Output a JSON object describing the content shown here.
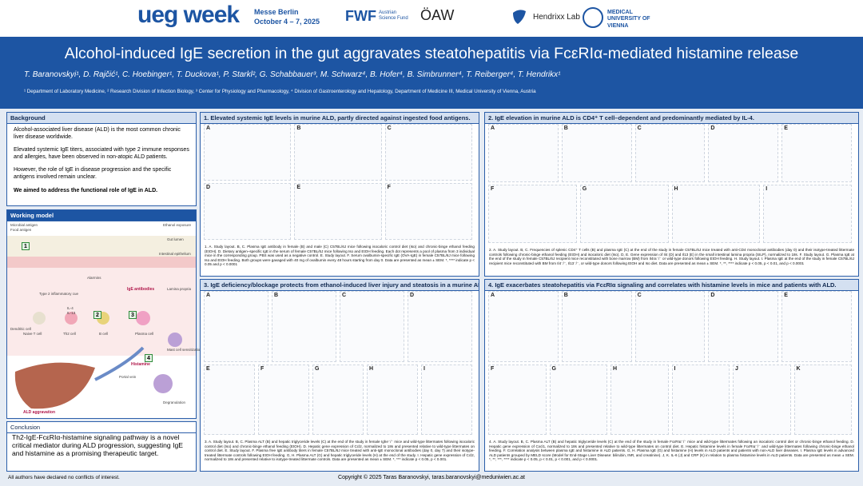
{
  "header": {
    "event": "ueg week",
    "venue": "Messe Berlin",
    "dates": "October 4 – 7, 2025",
    "logos": [
      "FWF",
      "Austrian Science Fund",
      "ÖAW",
      "Hendrixx Lab",
      "MEDICAL UNIVERSITY OF VIENNA"
    ]
  },
  "title": "Alcohol-induced IgE secretion in the gut aggravates steatohepatitis via FcεRIα-mediated histamine release",
  "authors": "T. Baranovskyi¹, D. Rajčić¹, C. Hoebinger¹, T. Duckova¹, P. Starkl², G. Schabbauer³, M. Schwarz⁴, B. Hofer⁴, B. Simbrunner⁴, T. Reiberger⁴, T. Hendrikx¹",
  "affiliations": "¹ Department of Laboratory Medicine, ² Research Division of Infection Biology, ³ Center for Physiology and Pharmacology, ⁴ Division of Gastroenterology and Hepatology, Department of Medicine III, Medical University of Vienna, Austria",
  "background": {
    "heading": "Background",
    "paragraphs": [
      "Alcohol-associated liver disease (ALD) is the most common chronic liver disease worldwide.",
      "Elevated systemic IgE titers, associated with type 2 immune responses and allergies, have been observed in non-atopic ALD patients.",
      "However, the role of IgE in disease progression and the specific antigens involved remain unclear."
    ],
    "aim": "We aimed to address the functional role of IgE in ALD."
  },
  "working_model": {
    "heading": "Working model",
    "labels": [
      "Microbial antigen",
      "Food antigen",
      "Ethanol exposure",
      "Gut lumen",
      "Intestinal epithelium",
      "Alarmins",
      "Lamina propria",
      "Type 2 inflammatory cue",
      "IgE antibodies",
      "IL-4",
      "IL-13",
      "Dendritic cell",
      "Naive T cell",
      "Th2 cell",
      "B cell",
      "Plasma cell",
      "Mast cell sensitization",
      "Histamine",
      "Portal vein",
      "Degranulation",
      "ALD aggravation"
    ],
    "steps": [
      "1",
      "2",
      "3",
      "4"
    ]
  },
  "conclusion": {
    "heading": "Conclusion",
    "text": "Th2-IgE-FcεRIα-histamine signaling pathway is a novel critical mediator during ALD progression, suggesting IgE and histamine as a promising therapeutic target."
  },
  "panels": [
    {
      "heading": "1. Elevated systemic IgE levels in murine ALD, partly directed against ingested food antigens.",
      "letters": [
        "A",
        "B",
        "C",
        "D",
        "E",
        "F"
      ],
      "caption": "1. A. Study layout. B, C. Plasma IgE antibody in female (B) and male (C) C57BL/6J mice following isocaloric control diet (Iso) and chronic-binge ethanol feeding (EtOH). D. Dietary antigen–specific IgE in the serum of female C57BL/6J mice following Iso and EtOH feeding. Each dot represents a pool of plasma from 3 individual mice in the corresponding group. PBS was used as a negative control. E. Study layout. F. Serum ovalbumin-specific IgE (OVA-IgE) in female C57BL/6J mice following Iso and EtOH feeding. Both groups were gavaged with 40 mg of ovalbumin every 48 hours starting from day 0. Data are presented as mean ± SEM. *, **** indicate p < 0.05 and p < 0.0001"
    },
    {
      "heading": "2. IgE elevation in murine ALD is CD4⁺ T cell–dependent and predominantly mediated by IL-4.",
      "letters": [
        "A",
        "B",
        "C",
        "D",
        "E",
        "F",
        "G",
        "H",
        "I"
      ],
      "caption": "2. A. Study layout. B, C. Frequencies of splenic CD4⁺ T cells (B) and plasma IgE (C) at the end of the study in female C57BL/6J mice treated with anti-CD4 monoclonal antibodies (day 0) and their isotype-treated littermate controls following chronic-binge ethanol feeding (EtOH) and isocaloric diet (Iso). D, E. Gene expression of Il4 (D) and Il13 (E) in the small intestinal lamina propria (SILP), normalized to 18s. F. Study layout. G. Plasma IgE at the end of the study in female C57BL/6J recipient mice reconstituted with bone marrow (BM) from Il4ra⁻/⁻ or wild-type donors following EtOH feeding. H. Study layout. I. Plasma IgE at the end of the study in female C57BL/6J recipient mice reconstituted with BM from Il4⁻/⁻, Il13⁻/⁻, or wild-type donors following EtOH and Iso diet. Data are presented as mean ± SEM. *, **, **** indicate p < 0.05, p < 0.01, and p < 0.0001"
    },
    {
      "heading": "3. IgE deficiency/blockage protects from ethanol-induced liver injury and steatosis in a murine ALD.",
      "letters": [
        "A",
        "B",
        "C",
        "D",
        "E",
        "F",
        "G",
        "H",
        "I"
      ],
      "caption": "3. A. Study layout. B, C. Plasma ALT (B) and hepatic triglyceride levels (C) at the end of the study in female Ighe⁻/⁻ mice and wild-type littermates following isocaloric control diet (Iso) and chronic-binge ethanol feeding (EtOH). D. Hepatic gene expression of Ccl2, normalized to 18s and presented relative to wild-type littermates on control diet. E. Study layout. F. Plasma free IgE antibody titers in female C57BL/6J mice treated with anti-IgE monoclonal antibodies (day 0, day 7) and their isotype-treated littermate controls following EtOH feeding. G, H. Plasma ALT (G) and hepatic triglyceride levels (H) at the end of the study. I. Hepatic gene expression of Ccl2, normalized to 18s and presented relative to isotype-treated littermate controls. Data are presented as mean ± SEM. *, *** indicate p < 0.05, p < 0.001."
    },
    {
      "heading": "4. IgE exacerbates steatohepatitis via FcεRIα signaling and correlates with histamine levels in mice and patients with ALD.",
      "letters": [
        "A",
        "B",
        "C",
        "D",
        "E",
        "F",
        "G",
        "H",
        "I",
        "J",
        "K"
      ],
      "caption": "4. A. Study layout. B, C. Plasma ALT (B) and hepatic triglyceride levels (C) at the end of the study in female FcεRIα⁻/⁻ mice and wild-type littermates following an isocaloric control diet or chronic-binge ethanol feeding. D. Hepatic gene expression of Cxcl1, normalized to 18s and presented relative to wild-type littermates on control diet. E. Hepatic histamine levels in female FcεRIα⁻/⁻ and wild-type littermates following chronic-binge ethanol feeding. F. Correlation analysis between plasma IgE and histamine in ALD patients. G, H. Plasma IgE (G) and histamine (H) levels in ALD patients and patients with non-ALD liver diseases. I. Plasma IgE levels in advanced ALD patients grouped by MELD score (Model for End-Stage Liver Disease: bilirubin, INR, and creatinine). J, K. IL-6 (J) and CRP (K) in relation to plasma histamine levels in ALD patients. Data are presented as mean ± SEM. *, **, ***, **** indicate p < 0.05, p < 0.01, p < 0.001, and p < 0.0001."
    }
  ],
  "footer": {
    "disclosure": "All authors have declared no conflicts of interest.",
    "copyright": "Copyright © 2025 Taras Baranovskyi, taras.baranovskyi@meduniwien.ac.at"
  }
}
